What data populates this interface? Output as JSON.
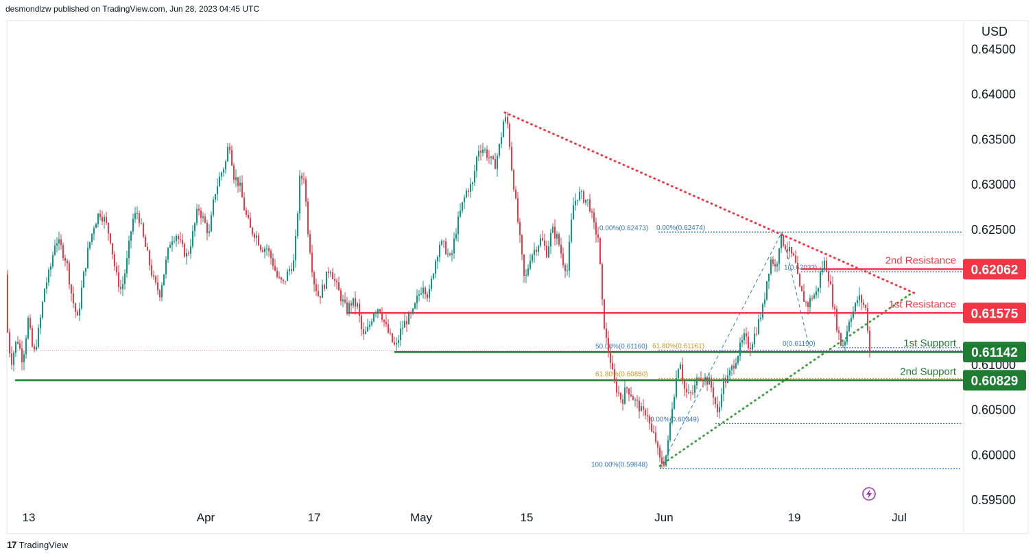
{
  "header": {
    "text": "desmondlzw published on TradingView.com, Jun 28, 2023 04:45 UTC"
  },
  "footer": {
    "brand": "TradingView"
  },
  "chart_data": {
    "type": "candlestick",
    "currency": "USD",
    "y_range": [
      0.5925,
      0.6495
    ],
    "y_ticks": [
      "0.64500",
      "0.64000",
      "0.63500",
      "0.63000",
      "0.62500",
      "0.60500",
      "0.60000",
      "0.59500"
    ],
    "y_tick_partial": "0.61000",
    "x_ticks": [
      "13",
      "Apr",
      "17",
      "May",
      "15",
      "Jun",
      "19",
      "Jul"
    ],
    "close_path": [
      [
        0,
        0.62
      ],
      [
        8,
        0.615
      ],
      [
        15,
        0.6102
      ],
      [
        24,
        0.613
      ],
      [
        32,
        0.6105
      ],
      [
        40,
        0.615
      ],
      [
        48,
        0.611
      ],
      [
        56,
        0.614
      ],
      [
        64,
        0.6185
      ],
      [
        72,
        0.6205
      ],
      [
        80,
        0.624
      ],
      [
        88,
        0.623
      ],
      [
        96,
        0.6215
      ],
      [
        104,
        0.6175
      ],
      [
        112,
        0.615
      ],
      [
        120,
        0.6195
      ],
      [
        128,
        0.623
      ],
      [
        136,
        0.6255
      ],
      [
        144,
        0.627
      ],
      [
        152,
        0.626
      ],
      [
        160,
        0.624
      ],
      [
        168,
        0.62
      ],
      [
        176,
        0.6182
      ],
      [
        184,
        0.6215
      ],
      [
        192,
        0.626
      ],
      [
        200,
        0.627
      ],
      [
        208,
        0.624
      ],
      [
        216,
        0.6215
      ],
      [
        224,
        0.619
      ],
      [
        232,
        0.618
      ],
      [
        240,
        0.621
      ],
      [
        248,
        0.624
      ],
      [
        256,
        0.6245
      ],
      [
        264,
        0.623
      ],
      [
        272,
        0.622
      ],
      [
        280,
        0.6245
      ],
      [
        288,
        0.6275
      ],
      [
        296,
        0.626
      ],
      [
        304,
        0.6245
      ],
      [
        312,
        0.629
      ],
      [
        320,
        0.631
      ],
      [
        328,
        0.6325
      ],
      [
        333,
        0.635
      ],
      [
        340,
        0.631
      ],
      [
        348,
        0.63
      ],
      [
        356,
        0.627
      ],
      [
        364,
        0.625
      ],
      [
        372,
        0.6245
      ],
      [
        380,
        0.623
      ],
      [
        388,
        0.623
      ],
      [
        396,
        0.6215
      ],
      [
        404,
        0.6195
      ],
      [
        412,
        0.619
      ],
      [
        420,
        0.6205
      ],
      [
        428,
        0.6215
      ],
      [
        436,
        0.6305
      ],
      [
        442,
        0.631
      ],
      [
        448,
        0.625
      ],
      [
        456,
        0.6195
      ],
      [
        464,
        0.6175
      ],
      [
        472,
        0.619
      ],
      [
        480,
        0.621
      ],
      [
        488,
        0.619
      ],
      [
        496,
        0.6175
      ],
      [
        504,
        0.616
      ],
      [
        512,
        0.617
      ],
      [
        520,
        0.6165
      ],
      [
        528,
        0.613
      ],
      [
        536,
        0.614
      ],
      [
        544,
        0.616
      ],
      [
        552,
        0.6165
      ],
      [
        560,
        0.6145
      ],
      [
        568,
        0.613
      ],
      [
        576,
        0.6118
      ],
      [
        584,
        0.614
      ],
      [
        592,
        0.615
      ],
      [
        600,
        0.6155
      ],
      [
        608,
        0.6175
      ],
      [
        616,
        0.619
      ],
      [
        624,
        0.6175
      ],
      [
        632,
        0.621
      ],
      [
        640,
        0.6235
      ],
      [
        648,
        0.623
      ],
      [
        656,
        0.6215
      ],
      [
        664,
        0.625
      ],
      [
        672,
        0.6275
      ],
      [
        680,
        0.6295
      ],
      [
        688,
        0.63
      ],
      [
        696,
        0.634
      ],
      [
        704,
        0.634
      ],
      [
        712,
        0.633
      ],
      [
        720,
        0.632
      ],
      [
        728,
        0.6345
      ],
      [
        734,
        0.6375
      ],
      [
        740,
        0.6365
      ],
      [
        744,
        0.6325
      ],
      [
        748,
        0.63
      ],
      [
        756,
        0.6245
      ],
      [
        764,
        0.619
      ],
      [
        772,
        0.622
      ],
      [
        780,
        0.623
      ],
      [
        788,
        0.624
      ],
      [
        796,
        0.6225
      ],
      [
        804,
        0.625
      ],
      [
        812,
        0.624
      ],
      [
        820,
        0.6215
      ],
      [
        826,
        0.6205
      ],
      [
        834,
        0.6275
      ],
      [
        842,
        0.629
      ],
      [
        850,
        0.6285
      ],
      [
        858,
        0.628
      ],
      [
        864,
        0.6255
      ],
      [
        872,
        0.624
      ],
      [
        876,
        0.6175
      ],
      [
        882,
        0.613
      ],
      [
        888,
        0.611
      ],
      [
        894,
        0.608
      ],
      [
        900,
        0.607
      ],
      [
        906,
        0.606
      ],
      [
        912,
        0.6075
      ],
      [
        918,
        0.607
      ],
      [
        924,
        0.606
      ],
      [
        930,
        0.6055
      ],
      [
        936,
        0.6045
      ],
      [
        942,
        0.605
      ],
      [
        948,
        0.6025
      ],
      [
        954,
        0.602
      ],
      [
        960,
        0.5995
      ],
      [
        966,
        0.599
      ],
      [
        972,
        0.6005
      ],
      [
        978,
        0.605
      ],
      [
        984,
        0.608
      ],
      [
        990,
        0.611
      ],
      [
        996,
        0.6075
      ],
      [
        1002,
        0.6065
      ],
      [
        1010,
        0.607
      ],
      [
        1018,
        0.609
      ],
      [
        1026,
        0.6085
      ],
      [
        1034,
        0.608
      ],
      [
        1040,
        0.6065
      ],
      [
        1046,
        0.604
      ],
      [
        1052,
        0.608
      ],
      [
        1060,
        0.6085
      ],
      [
        1068,
        0.61
      ],
      [
        1076,
        0.6115
      ],
      [
        1084,
        0.613
      ],
      [
        1092,
        0.612
      ],
      [
        1100,
        0.6135
      ],
      [
        1106,
        0.615
      ],
      [
        1112,
        0.6165
      ],
      [
        1118,
        0.62
      ],
      [
        1124,
        0.622
      ],
      [
        1130,
        0.6205
      ],
      [
        1136,
        0.624
      ],
      [
        1142,
        0.6235
      ],
      [
        1150,
        0.6225
      ],
      [
        1158,
        0.6215
      ],
      [
        1164,
        0.6185
      ],
      [
        1170,
        0.6175
      ],
      [
        1176,
        0.6165
      ],
      [
        1182,
        0.6175
      ],
      [
        1190,
        0.618
      ],
      [
        1196,
        0.6205
      ],
      [
        1202,
        0.6215
      ],
      [
        1208,
        0.6195
      ],
      [
        1214,
        0.6165
      ],
      [
        1220,
        0.614
      ],
      [
        1226,
        0.612
      ],
      [
        1232,
        0.613
      ],
      [
        1238,
        0.6155
      ],
      [
        1244,
        0.616
      ],
      [
        1250,
        0.6175
      ],
      [
        1256,
        0.617
      ],
      [
        1262,
        0.616
      ],
      [
        1267,
        0.6115
      ]
    ],
    "highlighted_price": {
      "price": "0.61575"
    },
    "levels": [
      {
        "label": "2nd Resistance",
        "price": "0.62062",
        "value": 0.62062,
        "color": "#f23645",
        "x_start": 1168
      },
      {
        "label": "1st Resistance",
        "price": "0.61575",
        "value": 0.61575,
        "color": "#f23645",
        "x_start": 505
      },
      {
        "label": "1st Support",
        "price": "0.61142",
        "value": 0.61142,
        "color": "#1e7d32",
        "x_start": 575
      },
      {
        "label": "2nd Support",
        "price": "0.60829",
        "value": 0.60829,
        "color": "#1e7d32",
        "x_start": 22
      }
    ],
    "fib_labels": [
      {
        "text": "0.00%(0.62473)",
        "value": 0.62473,
        "color": "#3179c9"
      },
      {
        "text": "0.00%(0.62474)",
        "value": 0.62474,
        "color": "#3179c9"
      },
      {
        "text": "50.00%(0.61160)",
        "value": 0.6116,
        "color": "#3179c9"
      },
      {
        "text": "61.80%(0.61161)",
        "value": 0.61161,
        "color": "#d4961a"
      },
      {
        "text": "61.80%(0.60850)",
        "value": 0.6085,
        "color": "#d4961a"
      },
      {
        "text": "0.00%(0.60349)",
        "value": 0.60349,
        "color": "#3179c9"
      },
      {
        "text": "100.00%(0.59848)",
        "value": 0.59848,
        "color": "#3179c9"
      },
      {
        "text": "0(0.61190)",
        "value": 0.6119,
        "color": "#3179c9"
      },
      {
        "text": "1(0.62033)",
        "value": 0.62033,
        "color": "#3179c9"
      }
    ],
    "trendlines": [
      {
        "name": "descending-resistance-trendline",
        "color": "#f23645",
        "from": [
          736,
          0.638
        ],
        "to": [
          1335,
          0.6179
        ]
      },
      {
        "name": "ascending-support-trendline",
        "color": "#43a047",
        "from": [
          962,
          0.5988
        ],
        "to": [
          1330,
          0.618
        ]
      }
    ]
  }
}
